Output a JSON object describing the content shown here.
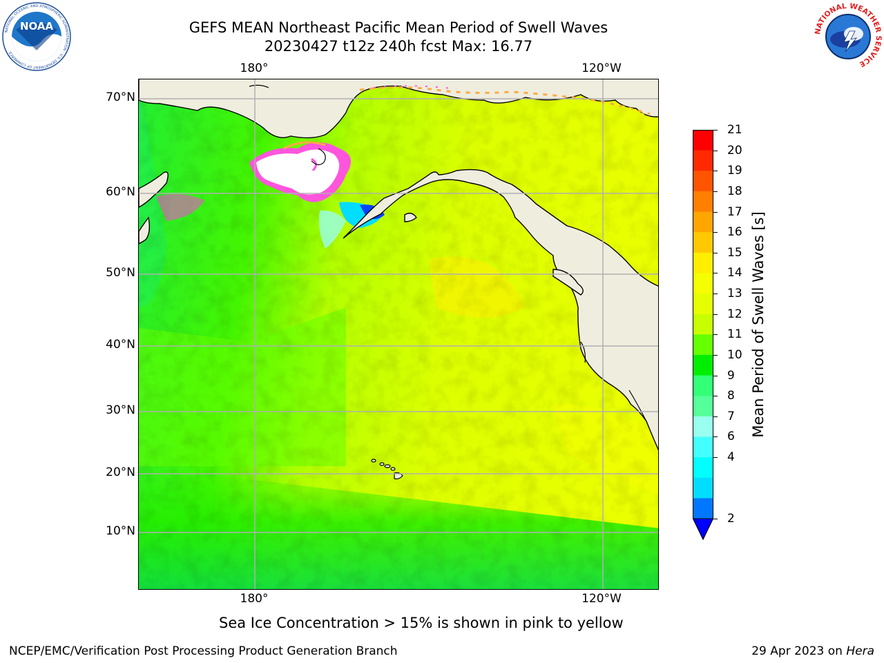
{
  "header": {
    "title_line1": "GEFS MEAN Northeast Pacific Mean Period of Swell Waves",
    "title_line2": "20230427 t12z 240h fcst   Max: 16.77"
  },
  "map": {
    "lon_ticks_top": [
      "180°",
      "120°W"
    ],
    "lon_ticks_bottom": [
      "180°",
      "120°W"
    ],
    "lat_ticks": [
      "70°N",
      "60°N",
      "50°N",
      "40°N",
      "30°N",
      "20°N",
      "10°N"
    ],
    "colors": {
      "land": "#efedde",
      "ice_white": "#ffffff",
      "ice_magenta": "#ff44dd",
      "ice_orange": "#ffaa44",
      "grid": "#b0b0b0",
      "coast": "#000000"
    },
    "field": {
      "variable": "Mean Period of Swell Waves",
      "max": 16.77
    }
  },
  "colorbar": {
    "label": "Mean Period of Swell Waves [s]",
    "ticks": [
      "21",
      "20",
      "19",
      "18",
      "17",
      "16",
      "15",
      "14",
      "13",
      "12",
      "11",
      "10",
      "9",
      "8",
      "7",
      "6",
      "4",
      "2"
    ],
    "bins_top_to_bottom": [
      "#ff0000",
      "#ff2a00",
      "#ff5500",
      "#ff7f00",
      "#ffa500",
      "#ffc800",
      "#ffee00",
      "#f5ff00",
      "#e6ff00",
      "#c8ff00",
      "#66ff00",
      "#00ee00",
      "#33ff77",
      "#55ff99",
      "#99ffee",
      "#44ffff",
      "#00ffff",
      "#00ddff",
      "#0077ff"
    ],
    "extend_color": "#0000ff"
  },
  "ice_note": "Sea Ice Concentration > 15% is shown in pink to yellow",
  "footer": {
    "left": "NCEP/EMC/Verification Post Processing Product Generation Branch",
    "right_prefix": "29 Apr 2023 on ",
    "right_machine": "Hera"
  },
  "logos": {
    "noaa": {
      "text": "NOAA",
      "ring_text": "NATIONAL OCEANIC AND ATMOSPHERIC ADMINISTRATION · U.S. DEPARTMENT OF COMMERCE"
    },
    "nws": {
      "ring_text": "NATIONAL WEATHER SERVICE"
    }
  }
}
